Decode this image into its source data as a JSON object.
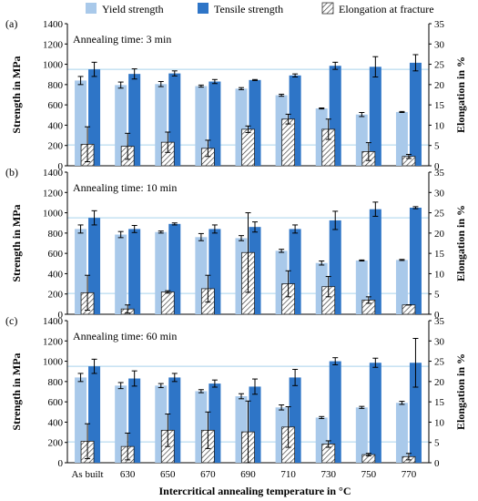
{
  "legend": {
    "items": [
      {
        "key": "yield",
        "label": "Yield strength",
        "color": "#a9c9ea",
        "style": "solid"
      },
      {
        "key": "tensile",
        "label": "Tensile strength",
        "color": "#2e75c7",
        "style": "solid"
      },
      {
        "key": "elong",
        "label": "Elongation at fracture",
        "color": "#ffffff",
        "style": "hatched"
      }
    ]
  },
  "xlabel": "Intercritical annealing temperature in °C",
  "colors": {
    "yield": "#a9c9ea",
    "tensile": "#2e75c7",
    "hatch": "#333333",
    "refline": "#a8d2ec"
  },
  "chart_data": [
    {
      "type": "bar",
      "panel_label": "(a)",
      "annotation": "Annealing time: 3 min",
      "ylabel": "Strength in MPa",
      "y2label": "Elongation in %",
      "ylim": [
        0,
        1400
      ],
      "y2lim": [
        0,
        35
      ],
      "yticks": [
        0,
        200,
        400,
        600,
        800,
        1000,
        1200,
        1400
      ],
      "y2ticks": [
        0,
        5,
        10,
        15,
        20,
        25,
        30,
        35
      ],
      "categories": [
        "As built",
        "630",
        "650",
        "670",
        "690",
        "710",
        "730",
        "750",
        "770"
      ],
      "series": [
        {
          "name": "Yield strength",
          "axis": "left",
          "values": [
            840,
            795,
            805,
            785,
            760,
            695,
            565,
            505,
            530
          ],
          "errors": [
            40,
            30,
            25,
            10,
            10,
            10,
            5,
            20,
            5
          ]
        },
        {
          "name": "Tensile strength",
          "axis": "left",
          "values": [
            950,
            905,
            910,
            830,
            845,
            890,
            985,
            975,
            1015
          ],
          "errors": [
            70,
            50,
            25,
            20,
            5,
            15,
            35,
            100,
            80
          ]
        },
        {
          "name": "Elongation at fracture",
          "axis": "right",
          "values": [
            5.3,
            4.8,
            5.8,
            4.3,
            9.0,
            11.5,
            9.0,
            3.5,
            2.3
          ],
          "errors": [
            4.3,
            3.2,
            2.5,
            2.0,
            0.8,
            1.2,
            2.5,
            2.2,
            0.5
          ]
        }
      ],
      "reference_lines": [
        950,
        205
      ]
    },
    {
      "type": "bar",
      "panel_label": "(b)",
      "annotation": "Annealing time: 10 min",
      "ylabel": "Strength in MPa",
      "y2label": "Elongation in %",
      "ylim": [
        0,
        1400
      ],
      "y2lim": [
        0,
        35
      ],
      "yticks": [
        0,
        200,
        400,
        600,
        800,
        1000,
        1200,
        1400
      ],
      "y2ticks": [
        0,
        5,
        10,
        15,
        20,
        25,
        30,
        35
      ],
      "categories": [
        "As built",
        "630",
        "650",
        "670",
        "690",
        "710",
        "730",
        "750",
        "770"
      ],
      "series": [
        {
          "name": "Yield strength",
          "axis": "left",
          "values": [
            840,
            785,
            810,
            760,
            750,
            625,
            505,
            530,
            535
          ],
          "errors": [
            40,
            30,
            10,
            35,
            25,
            15,
            20,
            5,
            5
          ]
        },
        {
          "name": "Tensile strength",
          "axis": "left",
          "values": [
            950,
            840,
            890,
            840,
            860,
            840,
            925,
            1035,
            1050
          ],
          "errors": [
            70,
            35,
            10,
            40,
            50,
            40,
            90,
            70,
            10
          ]
        },
        {
          "name": "Elongation at fracture",
          "axis": "right",
          "values": [
            5.3,
            1.3,
            5.5,
            6.3,
            15.2,
            7.5,
            6.8,
            3.5,
            2.3
          ],
          "errors": [
            4.3,
            1.0,
            0.3,
            3.3,
            9.8,
            3.2,
            2.5,
            0.8,
            0.0
          ]
        }
      ],
      "reference_lines": [
        950,
        205
      ]
    },
    {
      "type": "bar",
      "panel_label": "(c)",
      "annotation": "Annealing time: 60 min",
      "ylabel": "Strength in MPa",
      "y2label": "Elongation in %",
      "ylim": [
        0,
        1400
      ],
      "y2lim": [
        0,
        35
      ],
      "yticks": [
        0,
        200,
        400,
        600,
        800,
        1000,
        1200,
        1400
      ],
      "y2ticks": [
        0,
        5,
        10,
        15,
        20,
        25,
        30,
        35
      ],
      "categories": [
        "As built",
        "630",
        "650",
        "670",
        "690",
        "710",
        "730",
        "750",
        "770"
      ],
      "series": [
        {
          "name": "Yield strength",
          "axis": "left",
          "values": [
            840,
            760,
            760,
            705,
            655,
            545,
            445,
            545,
            590
          ],
          "errors": [
            40,
            30,
            20,
            15,
            25,
            25,
            10,
            10,
            15
          ]
        },
        {
          "name": "Tensile strength",
          "axis": "left",
          "values": [
            950,
            830,
            840,
            780,
            750,
            840,
            1000,
            985,
            985
          ],
          "errors": [
            70,
            75,
            40,
            35,
            75,
            80,
            35,
            45,
            240
          ]
        },
        {
          "name": "Elongation at fracture",
          "axis": "right",
          "values": [
            5.3,
            4.0,
            8.0,
            8.0,
            7.6,
            8.8,
            4.6,
            2.0,
            1.5
          ],
          "errors": [
            4.3,
            3.3,
            4.0,
            4.5,
            7.6,
            5.0,
            0.8,
            0.3,
            0.8
          ]
        }
      ],
      "reference_lines": [
        950,
        205
      ]
    }
  ]
}
